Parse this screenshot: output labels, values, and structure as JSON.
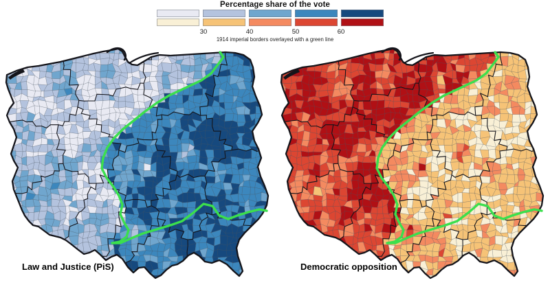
{
  "legend": {
    "title": "Percentage share of the vote",
    "subtitle": "1914 imperial borders overlayed with a green line",
    "tick_labels": [
      "30",
      "40",
      "50",
      "60"
    ],
    "bin_thresholds_percent": [
      30,
      40,
      50,
      60
    ],
    "pis_colors": [
      "#e9eaf3",
      "#b4c3de",
      "#70a6ce",
      "#3c87bd",
      "#16497e"
    ],
    "opposition_colors": [
      "#f9f0d6",
      "#f6c377",
      "#f48a60",
      "#dc4632",
      "#b01015"
    ],
    "green_line_color": "#3bdf4d",
    "border_color": "#14141a"
  },
  "maps": [
    {
      "id": "pis",
      "label": "Law and Justice (PiS)"
    },
    {
      "id": "opposition",
      "label": "Democratic opposition"
    }
  ]
}
